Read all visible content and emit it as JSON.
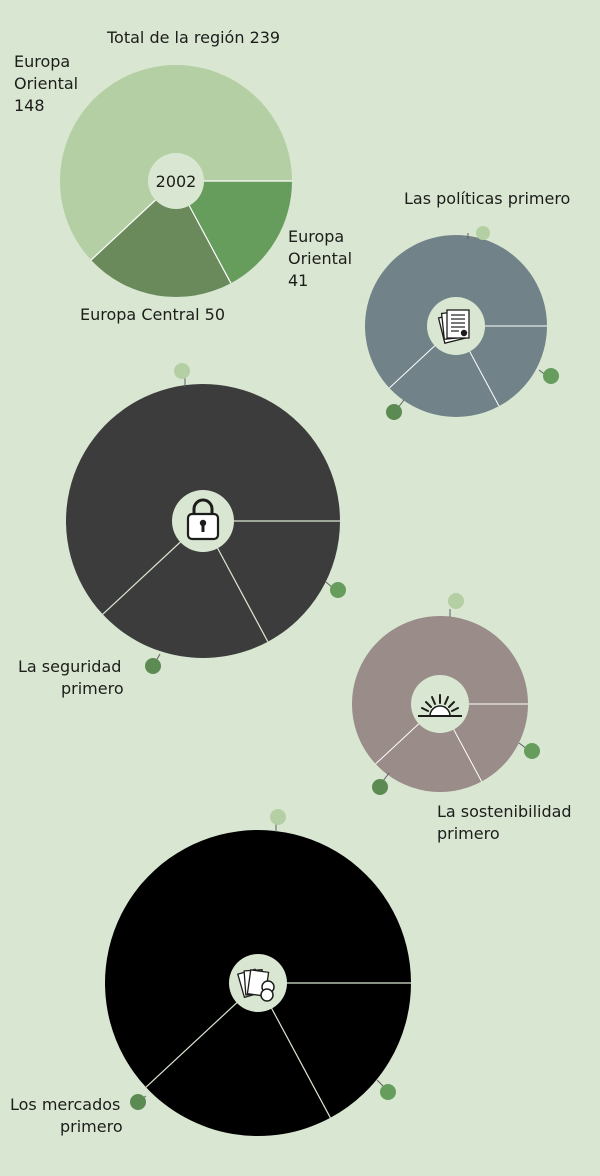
{
  "chart_data": [
    {
      "type": "pie",
      "title": "Total de la región 239",
      "center_label": "2002",
      "slices": [
        {
          "label_lines": [
            "Europa",
            "Oriental",
            "148"
          ],
          "value": 148,
          "color": "#b3cfa3"
        },
        {
          "label_lines": [
            "Europa",
            "Oriental",
            "41"
          ],
          "value": 41,
          "color": "#669d5c"
        },
        {
          "label_lines": [
            "Europa Central 50"
          ],
          "value": 50,
          "color": "#6a8a5c"
        }
      ]
    },
    {
      "type": "pie",
      "label_lines": [
        "Las políticas primero"
      ],
      "icon": "documents-icon",
      "color": "#718389",
      "values": [
        148,
        41,
        50
      ]
    },
    {
      "type": "pie",
      "label_lines": [
        "La seguridad",
        "primero"
      ],
      "icon": "lock-icon",
      "color": "#3c3c3c",
      "values": [
        148,
        41,
        50
      ]
    },
    {
      "type": "pie",
      "label_lines": [
        "La sostenibilidad",
        "primero"
      ],
      "icon": "sunrise-icon",
      "color": "#998c89",
      "values": [
        148,
        41,
        50
      ]
    },
    {
      "type": "pie",
      "label_lines": [
        "Los mercados",
        "primero"
      ],
      "icon": "cards-coins-icon",
      "color": "#000000",
      "values": [
        148,
        41,
        50
      ]
    }
  ],
  "marker_colors": {
    "light": "#b3cfa3",
    "mid": "#669d5c",
    "dark": "#5c8a53"
  }
}
